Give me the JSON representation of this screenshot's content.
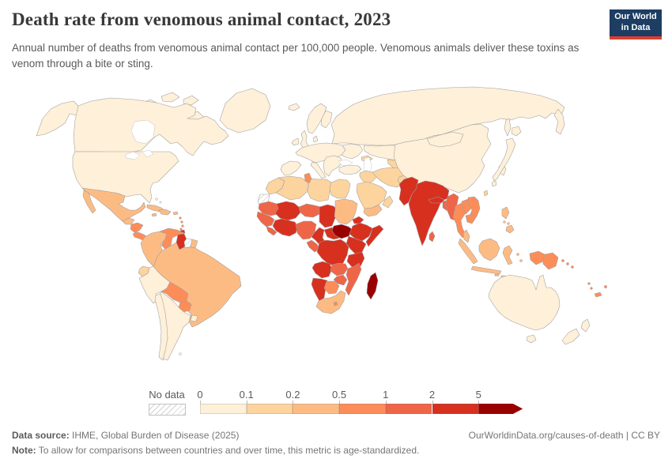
{
  "header": {
    "title": "Death rate from venomous animal contact, 2023",
    "subtitle": "Annual number of deaths from venomous animal contact per 100,000 people. Venomous animals deliver these toxins as venom through a bite or sting.",
    "logo": {
      "line1": "Our World",
      "line2": "in Data",
      "bg_color": "#1d3d63",
      "accent_color": "#dc3e32"
    }
  },
  "chart_data": {
    "type": "choropleth",
    "title": "Death rate from venomous animal contact, 2023",
    "year": 2023,
    "unit": "deaths per 100,000 people (age-standardized)",
    "legend": {
      "no_data_label": "No data",
      "bins": [
        {
          "label": "0",
          "color": "#fef0d9"
        },
        {
          "label": "0.1",
          "color": "#fdd49e"
        },
        {
          "label": "0.2",
          "color": "#fdbb84"
        },
        {
          "label": "0.5",
          "color": "#fc8d59"
        },
        {
          "label": "1",
          "color": "#ef6548"
        },
        {
          "label": "2",
          "color": "#d7301f"
        },
        {
          "label": "5",
          "color": "#990000",
          "open_ended": true
        }
      ]
    },
    "regions": {
      "greenland": 0,
      "arctic-islands": 0,
      "alaska": 0,
      "canada": 0,
      "usa": 0,
      "mexico": 2,
      "guatemala": 2,
      "honduras-nicaragua": 3,
      "costa-rica-panama": 3,
      "cuba": 2,
      "jamaica": 2,
      "hispaniola": 2,
      "puerto-rico": 2,
      "bahamas": 0,
      "lesser-antilles": 3,
      "trinidad-tobago": 5,
      "colombia": 2,
      "venezuela": 3,
      "guyana": 5,
      "suriname": "no_data",
      "french-guiana": 2,
      "ecuador": 1,
      "peru": 0,
      "brazil": 2,
      "bolivia": 3,
      "paraguay": 3,
      "uruguay": 0,
      "argentina": 0,
      "chile": 0,
      "falkland-islands": 0,
      "iceland": 0,
      "ireland": 0,
      "united-kingdom": 0,
      "norway-sweden": 0,
      "finland": 0,
      "denmark": 0,
      "europe-mainland": 0,
      "iberia": 0,
      "italy": 0,
      "balkans": 0,
      "eastern-europe": 0,
      "turkey": 0,
      "russia": 0,
      "kazakhstan": 0,
      "central-asia": 1,
      "caucasus": 1,
      "syria-iraq": 1,
      "saudi-arabia": 1,
      "yemen": 2,
      "oman": 1,
      "iran": 1,
      "afghanistan": 1,
      "morocco": 1,
      "western-sahara": "no_data",
      "algeria": 1,
      "tunisia": 3,
      "libya": 1,
      "egypt": 1,
      "mauritania": 4,
      "mali": 5,
      "senegal-guinea": 4,
      "sierra-leone-liberia": 4,
      "ivory-coast-ghana": 5,
      "niger": 4,
      "nigeria": 4,
      "chad": 5,
      "sudan": 2,
      "eritrea": 5,
      "south-sudan": 6,
      "ethiopia": 5,
      "somalia": 5,
      "cameroon": 5,
      "central-african-republic": 5,
      "gabon-congo": 4,
      "drc": 5,
      "kenya-uganda": 5,
      "tanzania": 5,
      "angola": 5,
      "zambia": 4,
      "mozambique": 4,
      "zimbabwe": 4,
      "namibia": 5,
      "botswana": 3,
      "south-africa": 2,
      "lesotho": 3,
      "madagascar": 6,
      "pakistan": 5,
      "india": 5,
      "nepal": 5,
      "bangladesh": 4,
      "sri-lanka": 4,
      "china": 0,
      "mongolia": 0,
      "south-korea": 0,
      "japan": 0,
      "taiwan": 1,
      "myanmar": 4,
      "thailand": 3,
      "laos": 3,
      "vietnam": 3,
      "cambodia": 3,
      "malaysia": 2,
      "sumatra": 2,
      "java": 2,
      "borneo": 2,
      "sulawesi": 2,
      "lesser-sunda": 2,
      "maluku": 2,
      "west-papua": 3,
      "papua-new-guinea": 3,
      "philippines": 2,
      "solomon-islands": 3,
      "vanuatu": 3,
      "fiji": 3,
      "new-caledonia": 3,
      "australia": 0,
      "tasmania": 0,
      "new-zealand": 0
    }
  },
  "footer": {
    "source_label": "Data source:",
    "source_text": " IHME, Global Burden of Disease (2025)",
    "credit": "OurWorldinData.org/causes-of-death | CC BY",
    "note_label": "Note:",
    "note_text": " To allow for comparisons between countries and over time, this metric is age-standardized."
  }
}
